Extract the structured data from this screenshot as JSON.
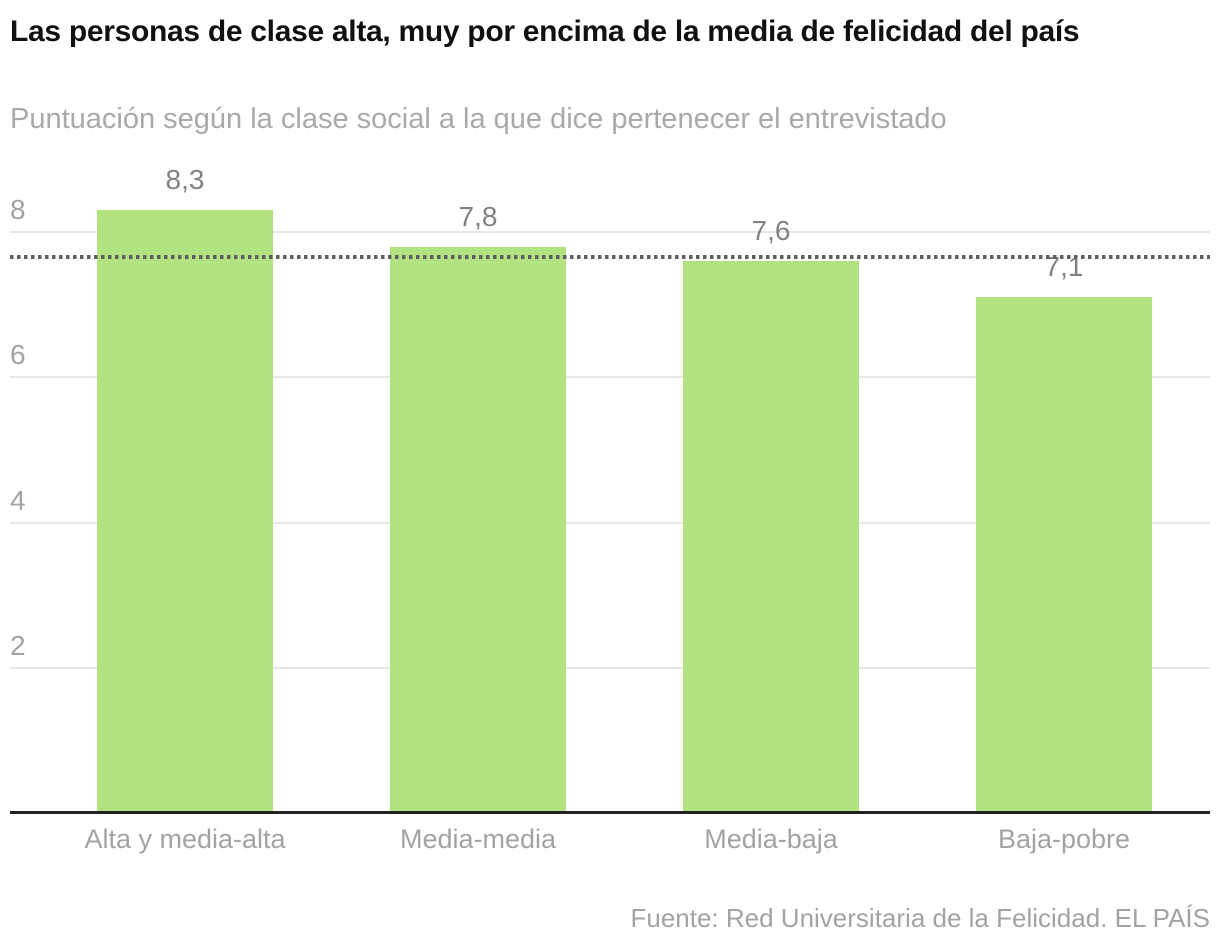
{
  "chart_data": {
    "type": "bar",
    "title": "Las personas de clase alta, muy por encima de la media de felicidad del país",
    "subtitle": "Puntuación según la clase social a la que dice pertenecer el entrevistado",
    "categories": [
      "Alta y media-alta",
      "Media-media",
      "Media-baja",
      "Baja-pobre"
    ],
    "values": [
      8.3,
      7.8,
      7.6,
      7.1
    ],
    "value_labels": [
      "8,3",
      "7,8",
      "7,6",
      "7,1"
    ],
    "xlabel": "",
    "ylabel": "",
    "yticks": [
      2,
      4,
      6,
      8
    ],
    "ylim": [
      0,
      9
    ],
    "grid": true,
    "legend": false,
    "reference_line": {
      "value": 7.65,
      "style": "dotted",
      "description": "media de felicidad del país"
    },
    "colors": {
      "bar": "#b2e380",
      "reference_line": "#5f5f5f",
      "grid": "#e7e7e7",
      "axis": "#222222",
      "title": "#111111",
      "subtitle": "#a9a9a9",
      "tick_label": "#a3a3a3",
      "value_label": "#828282",
      "category_label": "#a3a3a3",
      "source_text": "#a3a3a3"
    },
    "source": "Fuente: Red Universitaria de la Felicidad. EL PAÍS"
  }
}
